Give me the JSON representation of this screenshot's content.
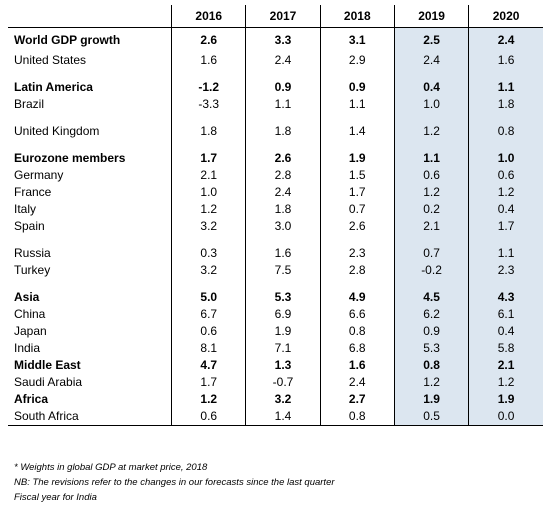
{
  "headers": [
    "",
    "2016",
    "2017",
    "2018",
    "2019",
    "2020"
  ],
  "rows": [
    {
      "label": "World GDP growth",
      "bold": true,
      "values": [
        "2.6",
        "3.3",
        "3.1",
        "2.5",
        "2.4"
      ]
    },
    {
      "label": "United States",
      "bold": false,
      "values": [
        "1.6",
        "2.4",
        "2.9",
        "2.4",
        "1.6"
      ]
    },
    {
      "label": "",
      "spacer": true,
      "values": [
        "",
        "",
        "",
        "",
        ""
      ]
    },
    {
      "label": "Latin America",
      "bold": true,
      "values": [
        "-1.2",
        "0.9",
        "0.9",
        "0.4",
        "1.1"
      ]
    },
    {
      "label": "Brazil",
      "bold": false,
      "values": [
        "-3.3",
        "1.1",
        "1.1",
        "1.0",
        "1.8"
      ]
    },
    {
      "label": "",
      "spacer": true,
      "values": [
        "",
        "",
        "",
        "",
        ""
      ]
    },
    {
      "label": "United Kingdom",
      "bold": false,
      "values": [
        "1.8",
        "1.8",
        "1.4",
        "1.2",
        "0.8"
      ]
    },
    {
      "label": "",
      "spacer": true,
      "values": [
        "",
        "",
        "",
        "",
        ""
      ]
    },
    {
      "label": "Eurozone members",
      "bold": true,
      "values": [
        "1.7",
        "2.6",
        "1.9",
        "1.1",
        "1.0"
      ]
    },
    {
      "label": "Germany",
      "bold": false,
      "values": [
        "2.1",
        "2.8",
        "1.5",
        "0.6",
        "0.6"
      ]
    },
    {
      "label": "France",
      "bold": false,
      "values": [
        "1.0",
        "2.4",
        "1.7",
        "1.2",
        "1.2"
      ]
    },
    {
      "label": "Italy",
      "bold": false,
      "values": [
        "1.2",
        "1.8",
        "0.7",
        "0.2",
        "0.4"
      ]
    },
    {
      "label": "Spain",
      "bold": false,
      "values": [
        "3.2",
        "3.0",
        "2.6",
        "2.1",
        "1.7"
      ]
    },
    {
      "label": "",
      "spacer": true,
      "values": [
        "",
        "",
        "",
        "",
        ""
      ]
    },
    {
      "label": "Russia",
      "bold": false,
      "values": [
        "0.3",
        "1.6",
        "2.3",
        "0.7",
        "1.1"
      ]
    },
    {
      "label": "Turkey",
      "bold": false,
      "values": [
        "3.2",
        "7.5",
        "2.8",
        "-0.2",
        "2.3"
      ]
    },
    {
      "label": "",
      "spacer": true,
      "values": [
        "",
        "",
        "",
        "",
        ""
      ]
    },
    {
      "label": "Asia",
      "bold": true,
      "values": [
        "5.0",
        "5.3",
        "4.9",
        "4.5",
        "4.3"
      ]
    },
    {
      "label": "China",
      "bold": false,
      "values": [
        "6.7",
        "6.9",
        "6.6",
        "6.2",
        "6.1"
      ]
    },
    {
      "label": "Japan",
      "bold": false,
      "values": [
        "0.6",
        "1.9",
        "0.8",
        "0.9",
        "0.4"
      ]
    },
    {
      "label": "India",
      "bold": false,
      "values": [
        "8.1",
        "7.1",
        "6.8",
        "5.3",
        "5.8"
      ]
    },
    {
      "label": "Middle East",
      "bold": true,
      "values": [
        "4.7",
        "1.3",
        "1.6",
        "0.8",
        "2.1"
      ]
    },
    {
      "label": "Saudi Arabia",
      "bold": false,
      "values": [
        "1.7",
        "-0.7",
        "2.4",
        "1.2",
        "1.2"
      ]
    },
    {
      "label": "Africa",
      "bold": true,
      "values": [
        "1.2",
        "3.2",
        "2.7",
        "1.9",
        "1.9"
      ]
    },
    {
      "label": "South Africa",
      "bold": false,
      "values": [
        "0.6",
        "1.4",
        "0.8",
        "0.5",
        "0.0"
      ]
    }
  ],
  "notes": [
    "* Weights in global GDP at market price, 2018",
    "NB: The revisions refer to the changes in our forecasts since the last quarter",
    "Fiscal year for India"
  ],
  "colors": {
    "forecast_fill": "#dce6f0"
  }
}
